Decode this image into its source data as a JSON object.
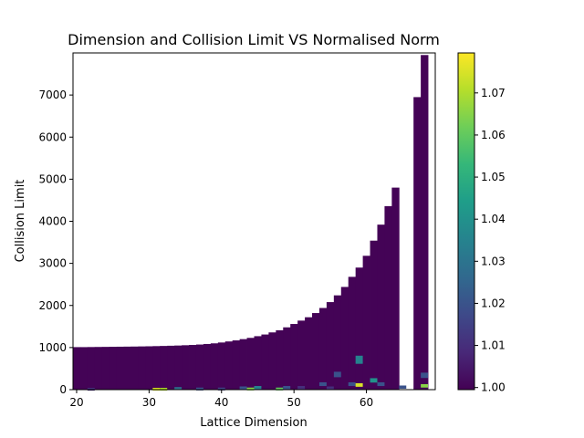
{
  "chart_data": {
    "type": "heatmap",
    "title": "Dimension and Collision Limit VS Normalised Norm",
    "xlabel": "Lattice Dimension",
    "ylabel": "Collision Limit",
    "xlim": [
      19.5,
      69.5
    ],
    "ylim": [
      0,
      8000
    ],
    "x_ticks": [
      "20",
      "30",
      "40",
      "50",
      "60"
    ],
    "x_tick_values": [
      20,
      30,
      40,
      50,
      60
    ],
    "y_ticks": [
      "0",
      "1000",
      "2000",
      "3000",
      "4000",
      "5000",
      "6000",
      "7000"
    ],
    "y_tick_values": [
      0,
      1000,
      2000,
      3000,
      4000,
      5000,
      6000,
      7000
    ],
    "colorbar": {
      "colormap": "viridis",
      "vmin": 0.9995,
      "vmax": 1.0795,
      "ticks": [
        "1.00",
        "1.01",
        "1.02",
        "1.03",
        "1.04",
        "1.05",
        "1.06",
        "1.07"
      ],
      "tick_values": [
        1.0,
        1.01,
        1.02,
        1.03,
        1.04,
        1.05,
        1.06,
        1.07
      ]
    },
    "dimensions": [
      20,
      21,
      22,
      23,
      24,
      25,
      26,
      27,
      28,
      29,
      30,
      31,
      32,
      33,
      34,
      35,
      36,
      37,
      38,
      39,
      40,
      41,
      42,
      43,
      44,
      45,
      46,
      47,
      48,
      49,
      50,
      51,
      52,
      53,
      54,
      55,
      56,
      57,
      58,
      59,
      60,
      61,
      62,
      63,
      64,
      65,
      66,
      67,
      68,
      69
    ],
    "collision_limits": [
      1010,
      1010,
      1012,
      1014,
      1016,
      1018,
      1020,
      1022,
      1024,
      1027,
      1030,
      1034,
      1038,
      1043,
      1048,
      1055,
      1062,
      1072,
      1085,
      1100,
      1120,
      1145,
      1170,
      1200,
      1230,
      1270,
      1310,
      1360,
      1410,
      1480,
      1560,
      1640,
      1720,
      1820,
      1940,
      2080,
      2240,
      2440,
      2680,
      2900,
      3180,
      3540,
      3920,
      4360,
      4800,
      0,
      0,
      6950,
      7950,
      0
    ],
    "base_value": 1.0,
    "highlight_cells": [
      {
        "x": 22,
        "y": 10,
        "value": 1.01
      },
      {
        "x": 31,
        "y": 10,
        "value": 1.075
      },
      {
        "x": 32,
        "y": 10,
        "value": 1.07
      },
      {
        "x": 34,
        "y": 25,
        "value": 1.03
      },
      {
        "x": 37,
        "y": 15,
        "value": 1.02
      },
      {
        "x": 40,
        "y": 15,
        "value": 1.015
      },
      {
        "x": 43,
        "y": 40,
        "value": 1.02
      },
      {
        "x": 44,
        "y": 15,
        "value": 1.065
      },
      {
        "x": 45,
        "y": 50,
        "value": 1.035
      },
      {
        "x": 48,
        "y": 15,
        "value": 1.06
      },
      {
        "x": 49,
        "y": 50,
        "value": 1.02
      },
      {
        "x": 51,
        "y": 50,
        "value": 1.01
      },
      {
        "x": 54,
        "y": 130,
        "value": 1.02
      },
      {
        "x": 55,
        "y": 40,
        "value": 1.01
      },
      {
        "x": 56,
        "y": 360,
        "value": 1.02
      },
      {
        "x": 58,
        "y": 130,
        "value": 1.02
      },
      {
        "x": 59,
        "y": 710,
        "value": 1.035
      },
      {
        "x": 59,
        "y": 110,
        "value": 1.075
      },
      {
        "x": 61,
        "y": 220,
        "value": 1.04
      },
      {
        "x": 62,
        "y": 130,
        "value": 1.02
      },
      {
        "x": 65,
        "y": 60,
        "value": 1.02
      },
      {
        "x": 68,
        "y": 340,
        "value": 1.02
      },
      {
        "x": 68,
        "y": 90,
        "value": 1.065
      }
    ]
  }
}
